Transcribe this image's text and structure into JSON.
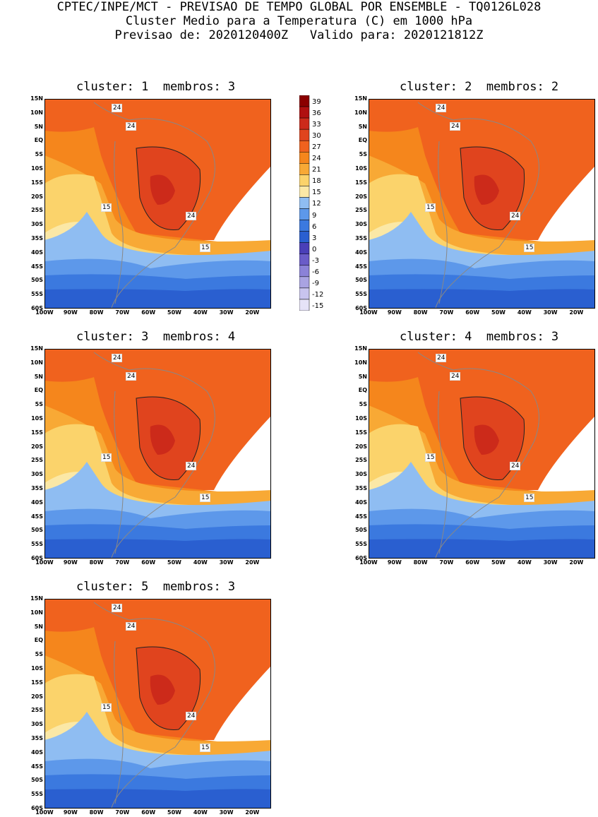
{
  "header": {
    "line1": "CPTEC/INPE/MCT - PREVISAO DE TEMPO GLOBAL POR ENSEMBLE - TQ0126L028",
    "line2": "Cluster Medio para a Temperatura (C) em 1000 hPa",
    "line3": "Previsao de: 2020120400Z   Valido para: 2020121812Z"
  },
  "panels": [
    {
      "title": "cluster: 1  membros: 3"
    },
    {
      "title": "cluster: 2  membros: 2"
    },
    {
      "title": "cluster: 3  membros: 4"
    },
    {
      "title": "cluster: 4  membros: 3"
    },
    {
      "title": "cluster: 5  membros: 3"
    }
  ],
  "lat_labels": [
    "15N",
    "10N",
    "5N",
    "EQ",
    "5S",
    "10S",
    "15S",
    "20S",
    "25S",
    "30S",
    "35S",
    "40S",
    "45S",
    "50S",
    "55S",
    "60S"
  ],
  "lon_labels": [
    "100W",
    "90W",
    "80W",
    "70W",
    "60W",
    "50W",
    "40W",
    "30W",
    "20W"
  ],
  "contour_labels": {
    "c24": "24",
    "c15": "15"
  },
  "colorbar": {
    "ticks": [
      "39",
      "36",
      "33",
      "30",
      "27",
      "24",
      "21",
      "18",
      "15",
      "12",
      "9",
      "6",
      "3",
      "0",
      "-3",
      "-6",
      "-9",
      "-12",
      "-15"
    ],
    "colors": [
      "#8b0000",
      "#b01010",
      "#cc2a1a",
      "#e0441e",
      "#f0621e",
      "#f5861c",
      "#f8a935",
      "#fbd36b",
      "#fbe8a6",
      "#8fbdf2",
      "#5d98ea",
      "#3b79df",
      "#2a5fd0",
      "#4a3fb8",
      "#6a5cc8",
      "#8b82d8",
      "#a9a3e2",
      "#c8c4ee",
      "#e6e3f8"
    ]
  }
}
